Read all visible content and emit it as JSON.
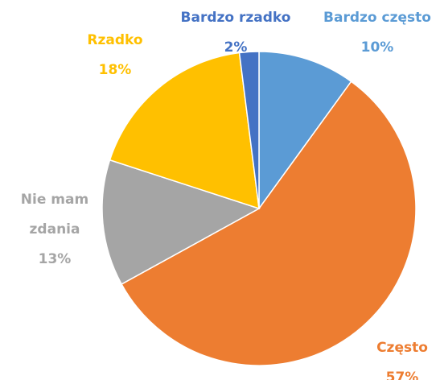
{
  "chart_data": {
    "type": "pie",
    "categories": [
      "Bardzo często",
      "Często",
      "Nie mam zdania",
      "Rzadko",
      "Bardzo rzadko"
    ],
    "values": [
      10,
      57,
      13,
      18,
      2
    ],
    "value_labels": [
      "10%",
      "57%",
      "13%",
      "18%",
      "2%"
    ],
    "colors": [
      "#5b9bd5",
      "#ed7d31",
      "#a5a5a5",
      "#ffc000",
      "#4472c4"
    ]
  }
}
